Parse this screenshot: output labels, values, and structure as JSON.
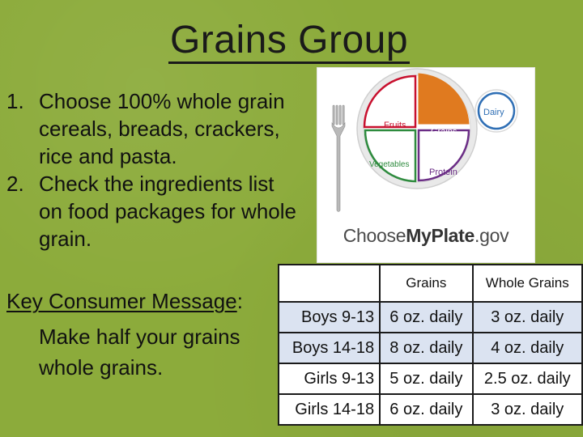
{
  "slide": {
    "title": "Grains Group",
    "list": [
      {
        "num": "1.",
        "text": "Choose 100% whole grain cereals, breads, crackers, rice and pasta."
      },
      {
        "num": "2.",
        "text": "Check the ingredients list on food packages for whole grain."
      }
    ],
    "key_message": {
      "label": "Key Consumer Message",
      "colon": ":",
      "text_line1": "Make half your grains",
      "text_line2": "whole grains."
    }
  },
  "plate_image": {
    "sections": {
      "fruits": "Fruits",
      "grains": "Grains",
      "vegetables": "Vegetables",
      "protein": "Protein",
      "dairy": "Dairy"
    },
    "logo_prefix": "Choose",
    "logo_bold": "MyPlate",
    "logo_suffix": ".gov",
    "colors": {
      "fruits": "#c8102e",
      "grains": "#e07a1f",
      "vegetables": "#2e8b3e",
      "protein": "#6b2d86",
      "dairy": "#2f6fb5"
    }
  },
  "table": {
    "headers": [
      "",
      "Grains",
      "Whole Grains"
    ],
    "rows": [
      {
        "label": "Boys 9-13",
        "grains": "6 oz. daily",
        "whole": "3 oz. daily"
      },
      {
        "label": "Boys 14-18",
        "grains": "8 oz. daily",
        "whole": "4 oz. daily"
      },
      {
        "label": "Girls 9-13",
        "grains": "5 oz. daily",
        "whole": "2.5 oz. daily"
      },
      {
        "label": "Girls 14-18",
        "grains": "6 oz. daily",
        "whole": "3 oz. daily"
      }
    ]
  }
}
